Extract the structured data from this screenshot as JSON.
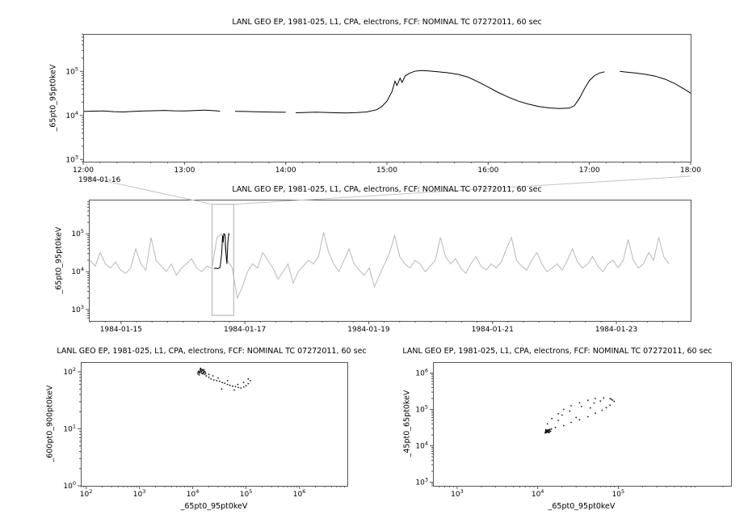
{
  "window": {
    "background": "#ffffff",
    "line_color": "#000000",
    "context_gray": "#b9b9b9",
    "connector_gray": "#c3c3c3"
  },
  "chart_data": [
    {
      "id": "zoom-timeseries",
      "type": "line",
      "title": "LANL GEO EP, 1981-025, L1, CPA, electrons, FCF: NOMINAL TC 07272011, 60 sec",
      "ylabel": "_65pt0_95pt0keV",
      "xlabel_date": "1984-01-16",
      "xlog": false,
      "xlim": [
        12,
        18
      ],
      "ylim_log": [
        2.95,
        5.85
      ],
      "xminor": 0.16667,
      "xticks": [
        {
          "v": 12,
          "l": "12:00"
        },
        {
          "v": 13,
          "l": "13:00"
        },
        {
          "v": 14,
          "l": "14:00"
        },
        {
          "v": 15,
          "l": "15:00"
        },
        {
          "v": 16,
          "l": "16:00"
        },
        {
          "v": 17,
          "l": "17:00"
        },
        {
          "v": 18,
          "l": "18:00"
        }
      ],
      "yticks_exp": [
        3,
        4,
        5
      ],
      "series": [
        {
          "name": "electron-flux-65-95keV",
          "color": "#000000",
          "width": 1,
          "points": [
            [
              12.0,
              12300
            ],
            [
              12.1,
              12500
            ],
            [
              12.2,
              12600
            ],
            [
              12.3,
              12200
            ],
            [
              12.4,
              12000
            ],
            [
              12.5,
              12400
            ],
            [
              12.6,
              12600
            ],
            [
              12.7,
              12800
            ],
            [
              12.8,
              13000
            ],
            [
              12.9,
              12700
            ],
            [
              13.0,
              12600
            ],
            [
              13.1,
              12900
            ],
            [
              13.2,
              13200
            ],
            [
              13.3,
              12800
            ],
            [
              13.35,
              12500
            ],
            [
              13.4,
              null
            ],
            [
              13.5,
              12400
            ],
            [
              13.6,
              12300
            ],
            [
              13.7,
              12100
            ],
            [
              13.8,
              12000
            ],
            [
              13.9,
              11900
            ],
            [
              14.0,
              11800
            ],
            [
              14.05,
              null
            ],
            [
              14.1,
              11500
            ],
            [
              14.2,
              11700
            ],
            [
              14.3,
              11900
            ],
            [
              14.4,
              11700
            ],
            [
              14.5,
              11500
            ],
            [
              14.6,
              11400
            ],
            [
              14.7,
              11600
            ],
            [
              14.8,
              12000
            ],
            [
              14.9,
              13500
            ],
            [
              14.95,
              16000
            ],
            [
              15.0,
              21000
            ],
            [
              15.05,
              35000
            ],
            [
              15.08,
              60000
            ],
            [
              15.1,
              48000
            ],
            [
              15.13,
              70000
            ],
            [
              15.15,
              56000
            ],
            [
              15.18,
              79000
            ],
            [
              15.22,
              90000
            ],
            [
              15.27,
              100000
            ],
            [
              15.33,
              105000
            ],
            [
              15.4,
              103000
            ],
            [
              15.5,
              98000
            ],
            [
              15.6,
              93000
            ],
            [
              15.7,
              86000
            ],
            [
              15.8,
              74000
            ],
            [
              15.9,
              58000
            ],
            [
              16.0,
              44000
            ],
            [
              16.1,
              33000
            ],
            [
              16.2,
              26000
            ],
            [
              16.3,
              21000
            ],
            [
              16.4,
              18000
            ],
            [
              16.5,
              16000
            ],
            [
              16.6,
              14800
            ],
            [
              16.7,
              14300
            ],
            [
              16.8,
              14600
            ],
            [
              16.85,
              16500
            ],
            [
              16.9,
              24000
            ],
            [
              16.95,
              40000
            ],
            [
              17.0,
              62000
            ],
            [
              17.05,
              80000
            ],
            [
              17.1,
              92000
            ],
            [
              17.15,
              98000
            ],
            [
              17.2,
              null
            ],
            [
              17.3,
              100000
            ],
            [
              17.35,
              97000
            ],
            [
              17.45,
              92000
            ],
            [
              17.55,
              86000
            ],
            [
              17.65,
              78000
            ],
            [
              17.75,
              66000
            ],
            [
              17.85,
              52000
            ],
            [
              17.95,
              38000
            ],
            [
              18.0,
              32000
            ]
          ]
        }
      ]
    },
    {
      "id": "context-timeseries",
      "type": "line",
      "title": "LANL GEO EP, 1981-025, L1, CPA, electrons, FCF: NOMINAL TC 07272011, 60 sec",
      "ylabel": "_65pt0_95pt0keV",
      "xlog": false,
      "xlim": [
        14.48,
        24.2
      ],
      "ylim_log": [
        2.7,
        5.9
      ],
      "xminor": 0.25,
      "xticks": [
        {
          "v": 15,
          "l": "1984-01-15"
        },
        {
          "v": 17,
          "l": "1984-01-17"
        },
        {
          "v": 19,
          "l": "1984-01-19"
        },
        {
          "v": 21,
          "l": "1984-01-21"
        },
        {
          "v": 23,
          "l": "1984-01-23"
        }
      ],
      "yticks_exp": [
        3,
        4,
        5
      ],
      "selection": {
        "x0": 16.47,
        "x1": 16.82,
        "y0": 700,
        "y1": 600000,
        "color": "#bbbbbb"
      },
      "series": [
        {
          "name": "context-flux-65-95keV",
          "color": "#b9b9b9",
          "width": 1,
          "start": 14.5,
          "step": 0.082,
          "values": [
            20000,
            14000,
            32000,
            16000,
            12500,
            18000,
            11000,
            9000,
            12500,
            40000,
            16000,
            11000,
            80000,
            20000,
            14000,
            10000,
            16000,
            8000,
            12500,
            16000,
            22000,
            12500,
            10000,
            14000,
            12500,
            80000,
            100000,
            20000,
            12500,
            2000,
            4000,
            10000,
            16000,
            12500,
            32000,
            20000,
            12500,
            6300,
            10000,
            16000,
            5000,
            10000,
            14000,
            20000,
            16000,
            25000,
            110000,
            32000,
            16000,
            10000,
            20000,
            40000,
            16000,
            11000,
            8000,
            12500,
            4000,
            8000,
            16000,
            32000,
            90000,
            25000,
            16000,
            12500,
            20000,
            16000,
            10000,
            14000,
            20000,
            80000,
            25000,
            16000,
            22000,
            12500,
            9000,
            16000,
            25000,
            14000,
            11000,
            16000,
            12500,
            18000,
            40000,
            80000,
            20000,
            14000,
            11000,
            20000,
            32000,
            16000,
            10000,
            12500,
            16000,
            11000,
            20000,
            40000,
            18000,
            12500,
            16000,
            25000,
            14000,
            10000,
            16000,
            20000,
            12500,
            20000,
            70000,
            20000,
            12500,
            16000,
            32000,
            20000,
            80000,
            25000,
            16000
          ]
        },
        {
          "name": "selected-interval-highlight",
          "color": "#000000",
          "width": 1,
          "points": [
            [
              16.5,
              12000
            ],
            [
              16.53,
              12500
            ],
            [
              16.56,
              12000
            ],
            [
              16.6,
              13000
            ],
            [
              16.625,
              30000
            ],
            [
              16.64,
              90000
            ],
            [
              16.65,
              60000
            ],
            [
              16.66,
              100000
            ],
            [
              16.68,
              95000
            ],
            [
              16.695,
              30000
            ],
            [
              16.71,
              16000
            ],
            [
              16.725,
              60000
            ],
            [
              16.74,
              100000
            ],
            [
              16.75,
              95000
            ]
          ]
        }
      ]
    },
    {
      "id": "scatter-600-900-vs-65-95",
      "type": "scatter",
      "title": "LANL GEO EP, 1981-025, L1, CPA, electrons, FCF: NOMINAL TC 07272011, 60 sec",
      "xlabel": "_65pt0_95pt0keV",
      "ylabel": "_600pt0_900pt0keV",
      "xlog": true,
      "xlim": [
        1.9,
        6.9
      ],
      "ylim_log": [
        0,
        2.17
      ],
      "xticks_exp": [
        2,
        3,
        4,
        5,
        6
      ],
      "yticks_exp": [
        0,
        1,
        2
      ],
      "series": [
        {
          "name": "scatter-points",
          "type": "scatter",
          "color": "#111111",
          "points": [
            [
              13000,
              100
            ],
            [
              14000,
              105
            ],
            [
              15000,
              110
            ],
            [
              13500,
              95
            ],
            [
              14500,
              100
            ],
            [
              15500,
              104
            ],
            [
              16000,
              98
            ],
            [
              12500,
              92
            ],
            [
              13800,
              108
            ],
            [
              14200,
              112
            ],
            [
              15800,
              96
            ],
            [
              16500,
              102
            ],
            [
              13200,
              88
            ],
            [
              14800,
              94
            ],
            [
              15200,
              107
            ],
            [
              12800,
              103
            ],
            [
              16200,
              109
            ],
            [
              17000,
              100
            ],
            [
              13600,
              99
            ],
            [
              14400,
              103
            ],
            [
              15600,
              92
            ],
            [
              12600,
              97
            ],
            [
              17500,
              95
            ],
            [
              16800,
              90
            ],
            [
              14000,
              115
            ],
            [
              20000,
              90
            ],
            [
              24000,
              85
            ],
            [
              30000,
              78
            ],
            [
              45000,
              70
            ],
            [
              70000,
              60
            ],
            [
              90000,
              65
            ],
            [
              110000,
              75
            ],
            [
              18000,
              85
            ],
            [
              20000,
              80
            ],
            [
              22000,
              75
            ],
            [
              25000,
              72
            ],
            [
              28000,
              70
            ],
            [
              32000,
              68
            ],
            [
              36000,
              65
            ],
            [
              40000,
              63
            ],
            [
              45000,
              60
            ],
            [
              50000,
              58
            ],
            [
              56000,
              56
            ],
            [
              63000,
              55
            ],
            [
              71000,
              53
            ],
            [
              80000,
              52
            ],
            [
              90000,
              54
            ],
            [
              100000,
              57
            ],
            [
              110000,
              62
            ],
            [
              120000,
              70
            ],
            [
              60000,
              48
            ],
            [
              35000,
              50
            ]
          ]
        }
      ]
    },
    {
      "id": "scatter-45-65-vs-65-95",
      "type": "scatter",
      "title": "LANL GEO EP, 1981-025, L1, CPA, electrons, FCF: NOMINAL TC 07272011, 60 sec",
      "xlabel": "_65pt0_95pt0keV",
      "ylabel": "_45pt0_65pt0keV",
      "xlog": true,
      "xlim": [
        2.7,
        6.4
      ],
      "ylim_log": [
        2.9,
        6.3
      ],
      "xticks_exp": [
        3,
        4,
        5
      ],
      "yticks_exp": [
        3,
        4,
        5,
        6
      ],
      "series": [
        {
          "name": "scatter-loop-points",
          "type": "scatter",
          "color": "#111111",
          "points": [
            [
              12600,
              28000
            ],
            [
              13200,
              40000
            ],
            [
              15000,
              56000
            ],
            [
              18000,
              76000
            ],
            [
              21000,
              100000
            ],
            [
              26000,
              126000
            ],
            [
              33000,
              151000
            ],
            [
              42000,
              178000
            ],
            [
              52000,
              200000
            ],
            [
              66000,
              209000
            ],
            [
              79000,
              200000
            ],
            [
              89000,
              166000
            ],
            [
              79000,
              132000
            ],
            [
              85000,
              180000
            ],
            [
              82000,
              190000
            ],
            [
              71000,
              112000
            ],
            [
              63000,
              95000
            ],
            [
              52000,
              79000
            ],
            [
              42000,
              63000
            ],
            [
              33000,
              52000
            ],
            [
              26000,
              44000
            ],
            [
              21000,
              36000
            ],
            [
              16600,
              32000
            ],
            [
              14100,
              28000
            ],
            [
              12600,
              25000
            ],
            [
              20000,
              70000
            ],
            [
              25000,
              90000
            ],
            [
              35000,
              120000
            ],
            [
              50000,
              150000
            ],
            [
              18000,
              50000
            ],
            [
              60000,
              170000
            ],
            [
              30000,
              60000
            ],
            [
              45000,
              110000
            ],
            [
              12500,
              24000
            ],
            [
              13000,
              26000
            ],
            [
              13500,
              25000
            ],
            [
              12800,
              23000
            ],
            [
              13200,
              27000
            ],
            [
              14000,
              26000
            ],
            [
              12600,
              25500
            ],
            [
              13800,
              24500
            ],
            [
              13400,
              23500
            ],
            [
              12900,
              26500
            ],
            [
              14200,
              28000
            ],
            [
              12400,
              22500
            ],
            [
              13600,
              27500
            ],
            [
              14500,
              25000
            ],
            [
              13100,
              24200
            ],
            [
              12700,
              27000
            ],
            [
              13900,
              22800
            ],
            [
              14800,
              29000
            ]
          ]
        }
      ]
    }
  ]
}
